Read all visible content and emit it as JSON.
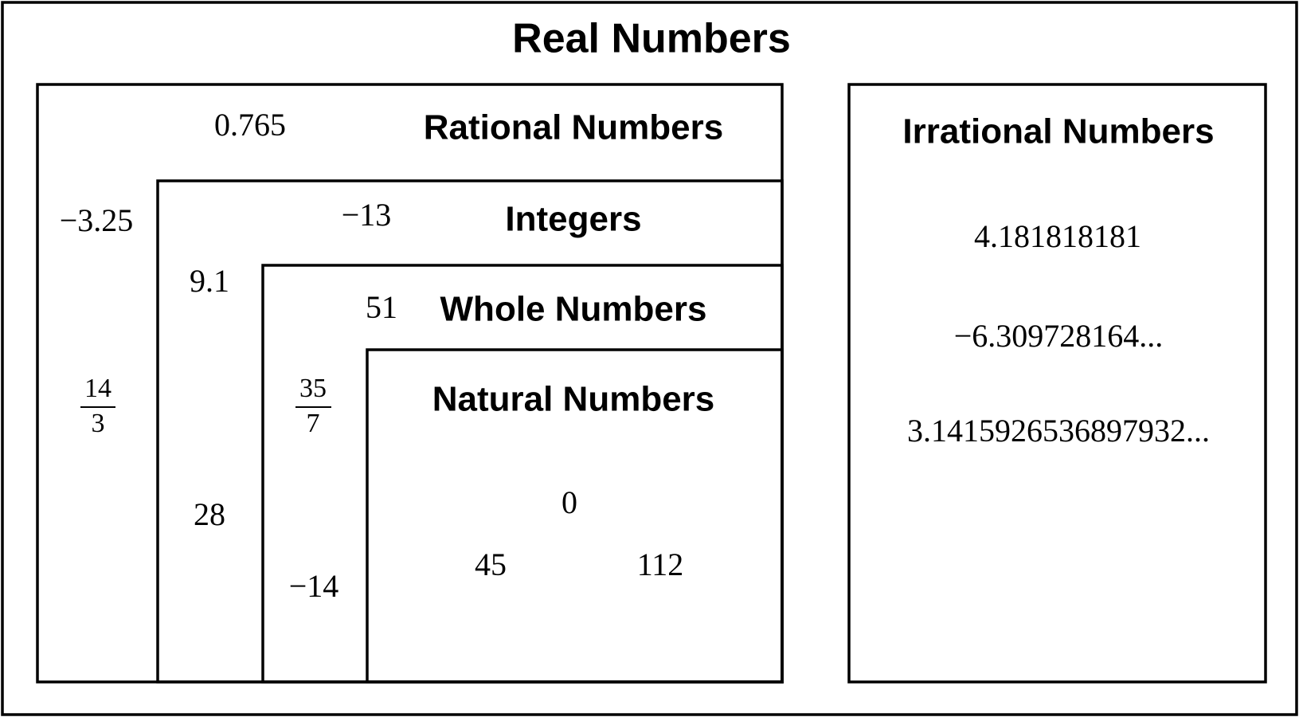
{
  "title": "Real Numbers",
  "sets": [
    {
      "label": "Rational Numbers",
      "members": [
        "0.765",
        "−3.25",
        {
          "numerator": "14",
          "denominator": "3"
        }
      ]
    },
    {
      "label": "Integers",
      "members": [
        "−13",
        "9.1",
        "28"
      ]
    },
    {
      "label": "Whole Numbers",
      "members": [
        "51",
        {
          "numerator": "35",
          "denominator": "7"
        },
        "−14"
      ]
    },
    {
      "label": "Natural Numbers",
      "members": [
        "0",
        "45",
        "112"
      ]
    },
    {
      "label": "Irrational Numbers",
      "members": [
        "4.181818181",
        "−6.309728164...",
        "3.1415926536897932..."
      ]
    }
  ]
}
